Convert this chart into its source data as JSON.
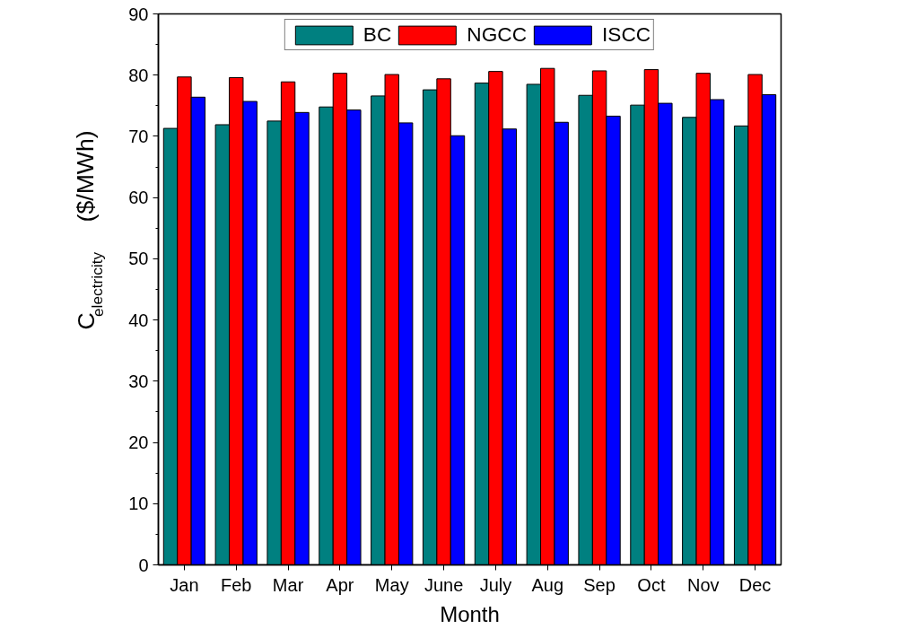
{
  "chart_data": {
    "type": "bar",
    "xlabel": "Month",
    "ylabel": "C$_{electricity}$ ($/MWh)",
    "categories": [
      "Jan",
      "Feb",
      "Mar",
      "Apr",
      "May",
      "June",
      "July",
      "Aug",
      "Sep",
      "Oct",
      "Nov",
      "Dec"
    ],
    "series": [
      {
        "name": "BC",
        "color": "#008080",
        "values": [
          71.3,
          71.9,
          72.5,
          74.8,
          76.6,
          77.6,
          78.7,
          78.5,
          76.7,
          75.1,
          73.1,
          71.7
        ]
      },
      {
        "name": "NGCC",
        "color": "#ff0000",
        "values": [
          79.7,
          79.6,
          78.9,
          80.3,
          80.1,
          79.4,
          80.6,
          81.1,
          80.7,
          80.9,
          80.3,
          80.1
        ]
      },
      {
        "name": "ISCC",
        "color": "#0000ff",
        "values": [
          76.4,
          75.7,
          73.9,
          74.3,
          72.2,
          70.1,
          71.2,
          72.3,
          73.3,
          75.4,
          76.0,
          76.8
        ]
      }
    ],
    "ylim": [
      0,
      90
    ],
    "yticks": [
      0,
      10,
      20,
      30,
      40,
      50,
      60,
      70,
      80,
      90
    ],
    "grid": false,
    "legend": "top"
  }
}
